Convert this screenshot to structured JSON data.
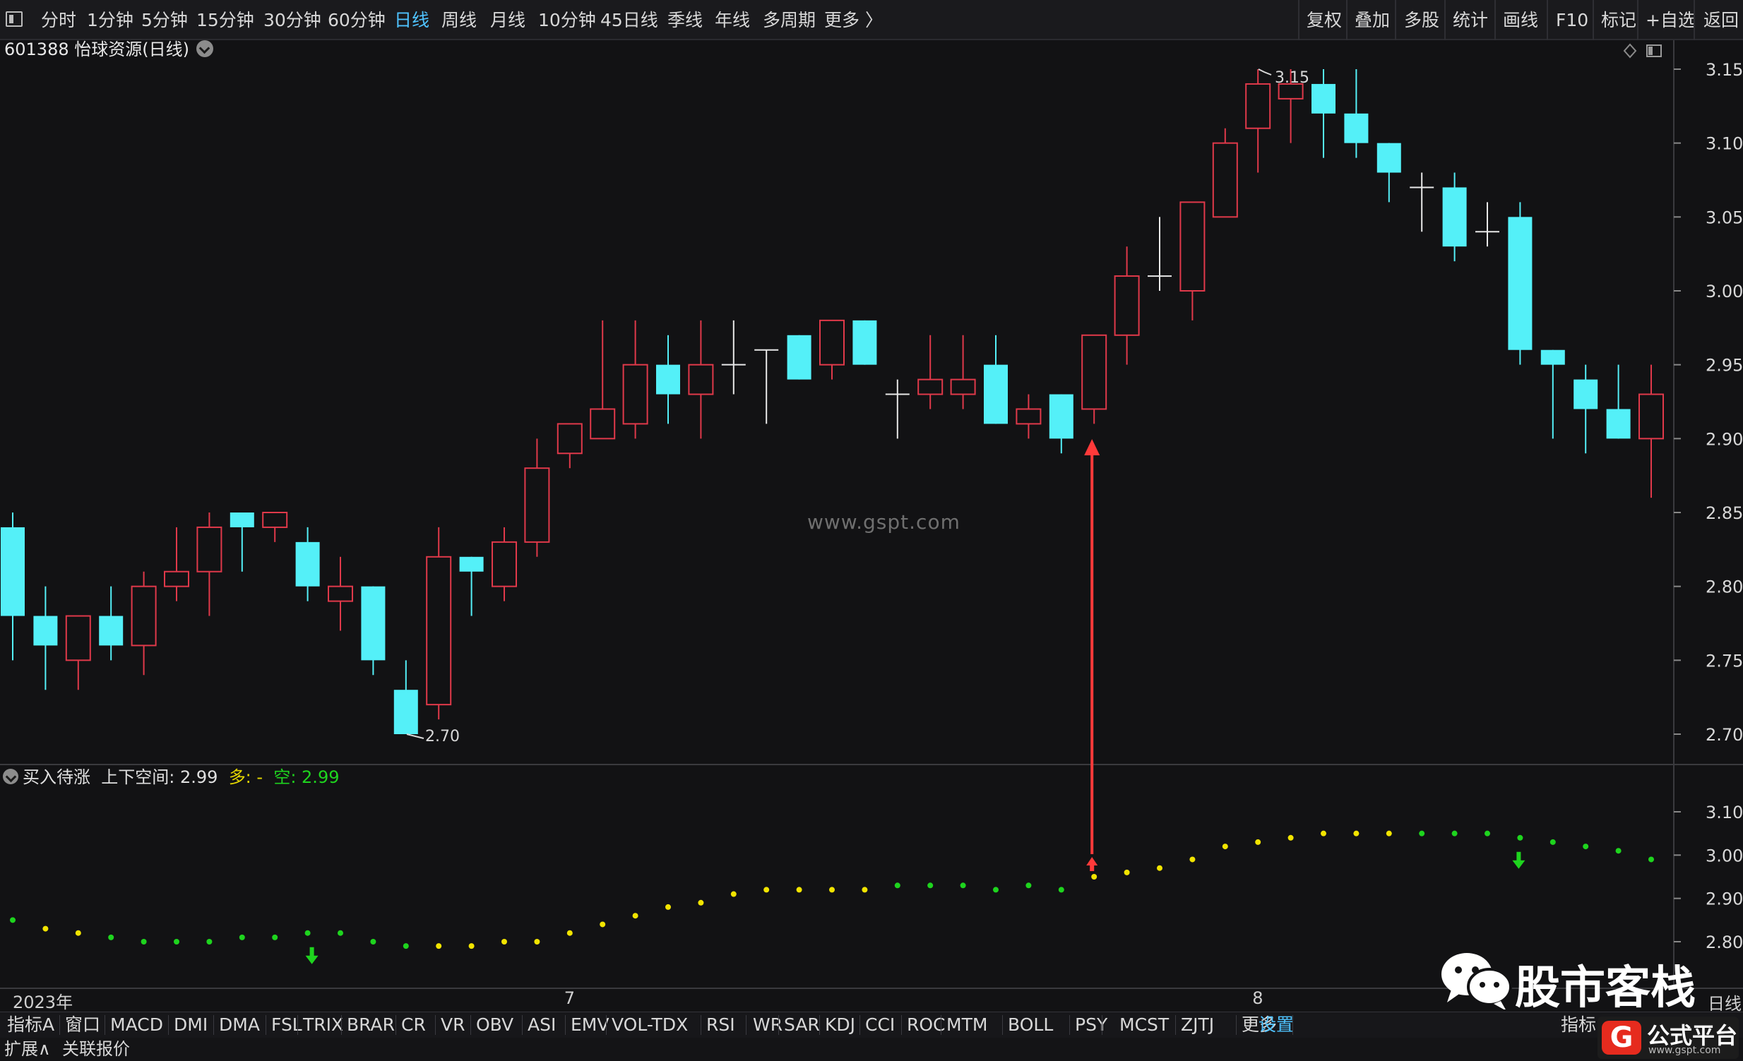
{
  "toolbar": {
    "left_items": [
      "分时",
      "1分钟",
      "5分钟",
      "15分钟",
      "30分钟",
      "60分钟",
      "日线",
      "周线",
      "月线",
      "10分钟",
      "45日线",
      "季线",
      "年线",
      "多周期",
      "更多 〉"
    ],
    "active_item": "日线",
    "right_items": [
      "复权",
      "叠加",
      "多股",
      "统计",
      "画线",
      "F10",
      "标记",
      "+自选",
      "返回"
    ]
  },
  "stock": {
    "title": "601388 怡球资源(日线)"
  },
  "watermark": "www.gspt.com",
  "price_panel": {
    "y_ticks": [
      "3.15",
      "3.10",
      "3.05",
      "3.00",
      "2.95",
      "2.90",
      "2.85",
      "2.80",
      "2.75",
      "2.70"
    ],
    "high_label": "3.15",
    "low_label": "2.70"
  },
  "indicator": {
    "name": "买入待涨",
    "label1": "上下空间: 2.99",
    "label2": "多: -",
    "label3": "空: 2.99",
    "y_ticks": [
      "3.10",
      "3.00",
      "2.90",
      "2.80"
    ]
  },
  "chart_data": {
    "type": "candlestick",
    "ylim": [
      2.68,
      3.17
    ],
    "candles": [
      {
        "o": 2.84,
        "h": 2.85,
        "l": 2.75,
        "c": 2.78
      },
      {
        "o": 2.78,
        "h": 2.8,
        "l": 2.73,
        "c": 2.76
      },
      {
        "o": 2.75,
        "h": 2.78,
        "l": 2.73,
        "c": 2.78
      },
      {
        "o": 2.78,
        "h": 2.8,
        "l": 2.75,
        "c": 2.76
      },
      {
        "o": 2.76,
        "h": 2.81,
        "l": 2.74,
        "c": 2.8
      },
      {
        "o": 2.8,
        "h": 2.84,
        "l": 2.79,
        "c": 2.81
      },
      {
        "o": 2.81,
        "h": 2.85,
        "l": 2.78,
        "c": 2.84
      },
      {
        "o": 2.85,
        "h": 2.85,
        "l": 2.81,
        "c": 2.84
      },
      {
        "o": 2.84,
        "h": 2.85,
        "l": 2.83,
        "c": 2.85
      },
      {
        "o": 2.83,
        "h": 2.84,
        "l": 2.79,
        "c": 2.8
      },
      {
        "o": 2.79,
        "h": 2.82,
        "l": 2.77,
        "c": 2.8
      },
      {
        "o": 2.8,
        "h": 2.8,
        "l": 2.74,
        "c": 2.75
      },
      {
        "o": 2.73,
        "h": 2.75,
        "l": 2.7,
        "c": 2.7
      },
      {
        "o": 2.72,
        "h": 2.84,
        "l": 2.71,
        "c": 2.82
      },
      {
        "o": 2.82,
        "h": 2.82,
        "l": 2.78,
        "c": 2.81
      },
      {
        "o": 2.8,
        "h": 2.84,
        "l": 2.79,
        "c": 2.83
      },
      {
        "o": 2.83,
        "h": 2.9,
        "l": 2.82,
        "c": 2.88
      },
      {
        "o": 2.89,
        "h": 2.91,
        "l": 2.88,
        "c": 2.91
      },
      {
        "o": 2.9,
        "h": 2.98,
        "l": 2.9,
        "c": 2.92
      },
      {
        "o": 2.91,
        "h": 2.98,
        "l": 2.9,
        "c": 2.95
      },
      {
        "o": 2.95,
        "h": 2.97,
        "l": 2.91,
        "c": 2.93
      },
      {
        "o": 2.93,
        "h": 2.98,
        "l": 2.9,
        "c": 2.95
      },
      {
        "o": 2.95,
        "h": 2.98,
        "l": 2.93,
        "c": 2.95
      },
      {
        "o": 2.96,
        "h": 2.96,
        "l": 2.91,
        "c": 2.96
      },
      {
        "o": 2.97,
        "h": 2.97,
        "l": 2.94,
        "c": 2.94
      },
      {
        "o": 2.95,
        "h": 2.98,
        "l": 2.94,
        "c": 2.98
      },
      {
        "o": 2.98,
        "h": 2.98,
        "l": 2.95,
        "c": 2.95
      },
      {
        "o": 2.93,
        "h": 2.94,
        "l": 2.9,
        "c": 2.93
      },
      {
        "o": 2.93,
        "h": 2.97,
        "l": 2.92,
        "c": 2.94
      },
      {
        "o": 2.93,
        "h": 2.97,
        "l": 2.92,
        "c": 2.94
      },
      {
        "o": 2.95,
        "h": 2.97,
        "l": 2.91,
        "c": 2.91
      },
      {
        "o": 2.91,
        "h": 2.93,
        "l": 2.9,
        "c": 2.92
      },
      {
        "o": 2.93,
        "h": 2.93,
        "l": 2.89,
        "c": 2.9
      },
      {
        "o": 2.92,
        "h": 2.97,
        "l": 2.91,
        "c": 2.97
      },
      {
        "o": 2.97,
        "h": 3.03,
        "l": 2.95,
        "c": 3.01
      },
      {
        "o": 3.01,
        "h": 3.05,
        "l": 3.0,
        "c": 3.01
      },
      {
        "o": 3.0,
        "h": 3.06,
        "l": 2.98,
        "c": 3.06
      },
      {
        "o": 3.05,
        "h": 3.11,
        "l": 3.05,
        "c": 3.1
      },
      {
        "o": 3.11,
        "h": 3.15,
        "l": 3.08,
        "c": 3.14
      },
      {
        "o": 3.13,
        "h": 3.15,
        "l": 3.1,
        "c": 3.14
      },
      {
        "o": 3.14,
        "h": 3.15,
        "l": 3.09,
        "c": 3.12
      },
      {
        "o": 3.12,
        "h": 3.15,
        "l": 3.09,
        "c": 3.1
      },
      {
        "o": 3.1,
        "h": 3.1,
        "l": 3.06,
        "c": 3.08
      },
      {
        "o": 3.07,
        "h": 3.08,
        "l": 3.04,
        "c": 3.07
      },
      {
        "o": 3.07,
        "h": 3.08,
        "l": 3.02,
        "c": 3.03
      },
      {
        "o": 3.04,
        "h": 3.06,
        "l": 3.03,
        "c": 3.04
      },
      {
        "o": 3.05,
        "h": 3.06,
        "l": 2.95,
        "c": 2.96
      },
      {
        "o": 2.96,
        "h": 2.96,
        "l": 2.9,
        "c": 2.95
      },
      {
        "o": 2.94,
        "h": 2.95,
        "l": 2.89,
        "c": 2.92
      },
      {
        "o": 2.92,
        "h": 2.95,
        "l": 2.9,
        "c": 2.9
      },
      {
        "o": 2.9,
        "h": 2.95,
        "l": 2.86,
        "c": 2.93
      }
    ],
    "indicator_values": [
      2.85,
      2.83,
      2.82,
      2.81,
      2.8,
      2.8,
      2.8,
      2.81,
      2.81,
      2.82,
      2.82,
      2.8,
      2.79,
      2.79,
      2.79,
      2.8,
      2.8,
      2.82,
      2.84,
      2.86,
      2.88,
      2.89,
      2.91,
      2.92,
      2.92,
      2.92,
      2.92,
      2.93,
      2.93,
      2.93,
      2.92,
      2.93,
      2.92,
      2.95,
      2.96,
      2.97,
      2.99,
      3.02,
      3.03,
      3.04,
      3.05,
      3.05,
      3.05,
      3.05,
      3.05,
      3.05,
      3.04,
      3.03,
      3.02,
      3.01,
      2.99
    ],
    "indicator_ylim": [
      2.75,
      3.15
    ],
    "indicator_colors": {
      "yellow": "#f2e400",
      "green": "#1ed41e"
    },
    "green_dot_ranges": [
      [
        3,
        12
      ],
      [
        27,
        32
      ],
      [
        43,
        50
      ]
    ],
    "buy_signal_index": 33,
    "sell_signal_indices": [
      9,
      46
    ],
    "x_labels": [
      {
        "index": 0,
        "text": "2023年"
      },
      {
        "index": 17,
        "text": "7"
      },
      {
        "index": 38,
        "text": "8"
      }
    ],
    "up_color": "#e0394a",
    "down_color": "#54f0f8",
    "flat_color": "#e8e8e8"
  },
  "tabs": {
    "items": [
      "指标A",
      "窗口",
      "MACD",
      "DMI",
      "DMA",
      "FSL",
      "TRIX",
      "BRAR",
      "CR",
      "VR",
      "OBV",
      "ASI",
      "EMV",
      "VOL-TDX",
      "RSI",
      "WR",
      "SAR",
      "KDJ",
      "CCI",
      "ROC",
      "MTM",
      "BOLL",
      "PSY",
      "MCST",
      "ZJTJ",
      "更多",
      "设置"
    ],
    "active": "设置",
    "right_label": "指标",
    "period_label": "日线"
  },
  "bottom": {
    "items": [
      "扩展∧",
      "关联报价"
    ]
  },
  "overlay": {
    "wechat_text": "股市客栈",
    "brand_name": "公式平台",
    "brand_url": "www.gspt.com"
  }
}
